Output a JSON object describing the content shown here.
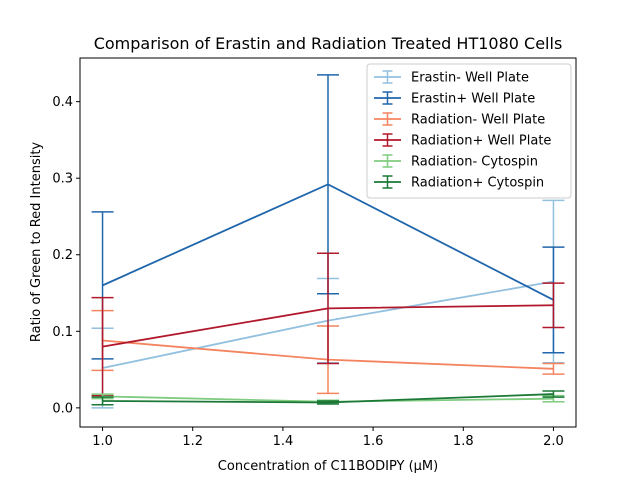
{
  "chart_data": {
    "type": "line",
    "title": "Comparison of Erastin and Radiation Treated HT1080 Cells",
    "xlabel": "Concentration of C11BODIPY (μM)",
    "ylabel": "Ratio of Green to Red Intensity",
    "xlim": [
      0.95,
      2.05
    ],
    "ylim": [
      -0.025,
      0.457
    ],
    "xticks": [
      1.0,
      1.2,
      1.4,
      1.6,
      1.8,
      2.0
    ],
    "xtick_labels": [
      "1.0",
      "1.2",
      "1.4",
      "1.6",
      "1.8",
      "2.0"
    ],
    "yticks": [
      0.0,
      0.1,
      0.2,
      0.3,
      0.4
    ],
    "ytick_labels": [
      "0.0",
      "0.1",
      "0.2",
      "0.3",
      "0.4"
    ],
    "grid": false,
    "legend_position": "top-right",
    "x": [
      1.0,
      1.5,
      2.0
    ],
    "series": [
      {
        "name": "Erastin- Well Plate",
        "color": "#92c0de",
        "values": [
          0.052,
          0.114,
          0.165
        ],
        "errors": [
          0.052,
          0.055,
          0.106
        ]
      },
      {
        "name": "Erastin+ Well Plate",
        "color": "#2066ac",
        "values": [
          0.16,
          0.292,
          0.141
        ],
        "errors": [
          0.096,
          0.143,
          0.069
        ]
      },
      {
        "name": "Radiation- Well Plate",
        "color": "#f4845f",
        "values": [
          0.088,
          0.063,
          0.051
        ],
        "errors": [
          0.039,
          0.044,
          0.007
        ]
      },
      {
        "name": "Radiation+ Well Plate",
        "color": "#b2182b",
        "values": [
          0.08,
          0.13,
          0.134
        ],
        "errors": [
          0.064,
          0.072,
          0.029
        ]
      },
      {
        "name": "Radiation- Cytospin",
        "color": "#7fcb7f",
        "values": [
          0.015,
          0.008,
          0.012
        ],
        "errors": [
          0.003,
          0.002,
          0.004
        ]
      },
      {
        "name": "Radiation+ Cytospin",
        "color": "#1b7837",
        "values": [
          0.009,
          0.007,
          0.018
        ],
        "errors": [
          0.005,
          0.002,
          0.004
        ]
      }
    ]
  }
}
